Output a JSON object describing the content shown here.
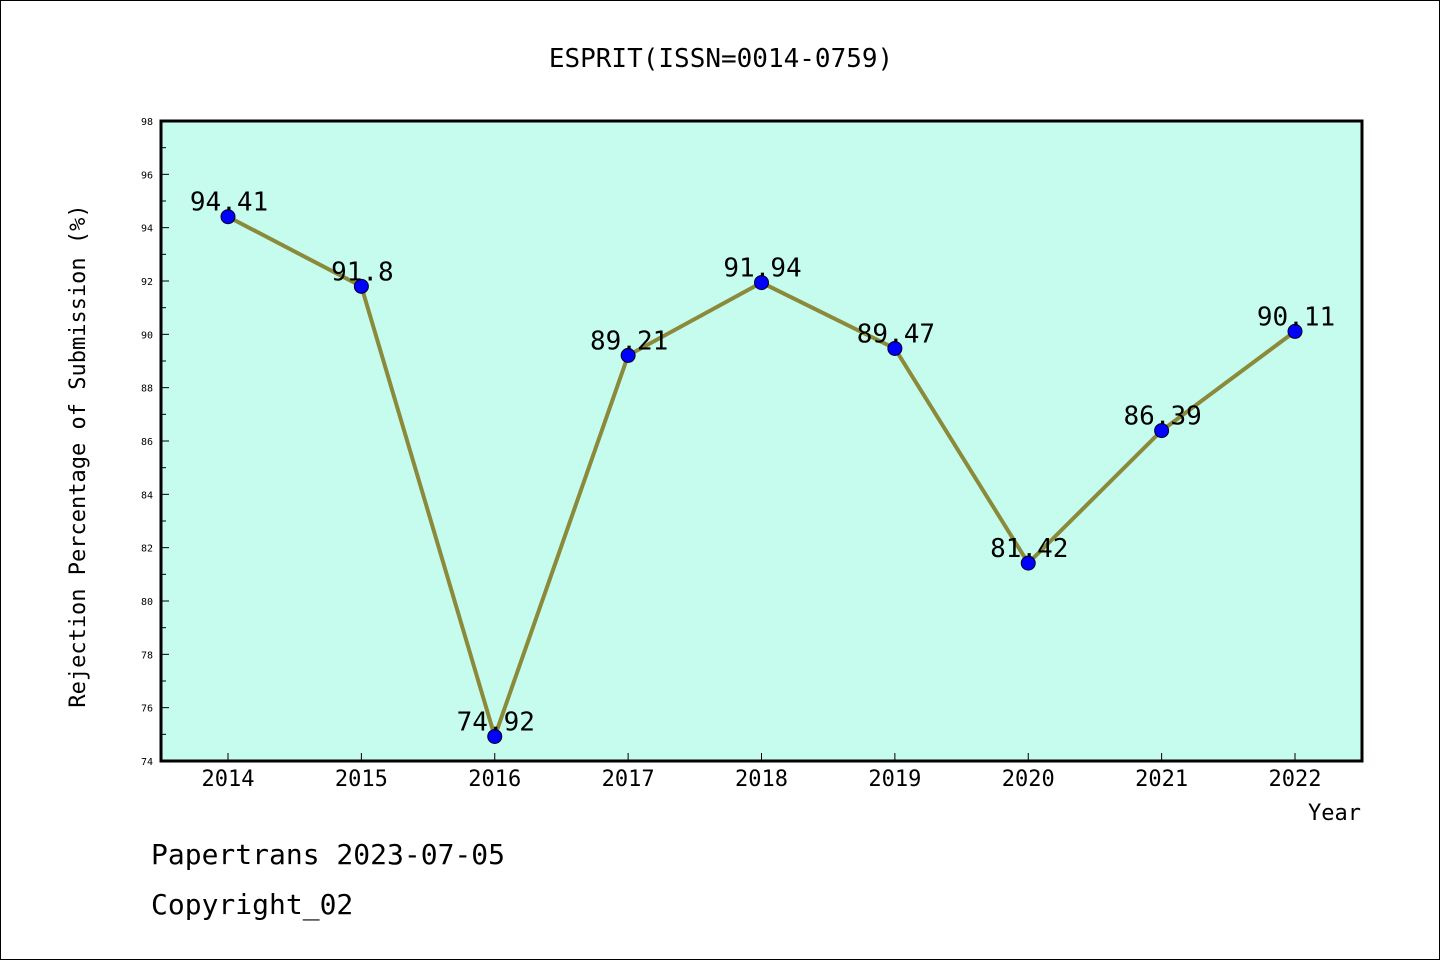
{
  "chart_data": {
    "type": "line",
    "title": "ESPRIT(ISSN=0014-0759)",
    "xlabel": "Year",
    "ylabel": "Rejection Percentage of Submission (%)",
    "categories": [
      "2014",
      "2015",
      "2016",
      "2017",
      "2018",
      "2019",
      "2020",
      "2021",
      "2022"
    ],
    "series": [
      {
        "values": [
          94.41,
          91.8,
          74.92,
          89.21,
          91.94,
          89.47,
          81.42,
          86.39,
          90.11
        ]
      }
    ],
    "data_labels": [
      "94.41",
      "91.8",
      "74.92",
      "89.21",
      "91.94",
      "89.47",
      "81.42",
      "86.39",
      "90.11"
    ],
    "ylim": [
      74,
      98
    ],
    "yticks": [
      "74",
      "76",
      "78",
      "80",
      "82",
      "84",
      "86",
      "88",
      "90",
      "92",
      "94",
      "96",
      "98"
    ],
    "grid": false,
    "legend": "none",
    "colors": {
      "plot_bg": "#c6fcee",
      "line": "#8b8a3a",
      "marker": "#0000ff"
    }
  },
  "footer": {
    "line1": "Papertrans 2023-07-05",
    "line2": "Copyright_02"
  }
}
